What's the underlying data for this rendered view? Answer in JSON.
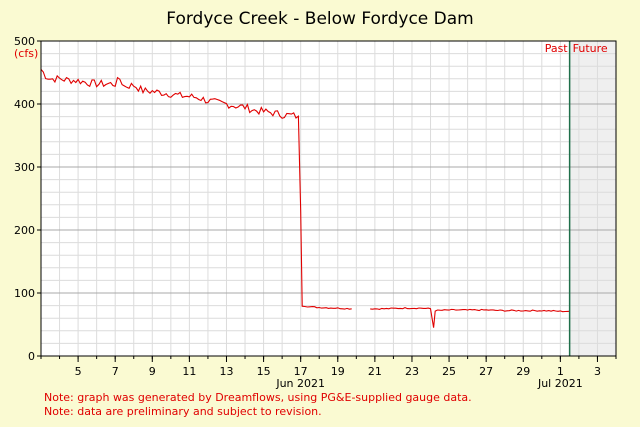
{
  "chart_data": {
    "type": "line",
    "title": "Fordyce Creek - Below Fordyce Dam",
    "ylabel": "(cfs)",
    "ylim": [
      0,
      500
    ],
    "yticks": [
      0,
      100,
      200,
      300,
      400,
      500
    ],
    "xlim": [
      "2021-06-03",
      "2021-07-04"
    ],
    "xtick_labels": [
      {
        "date": "2021-06-05",
        "label": "5"
      },
      {
        "date": "2021-06-07",
        "label": "7"
      },
      {
        "date": "2021-06-09",
        "label": "9"
      },
      {
        "date": "2021-06-11",
        "label": "11"
      },
      {
        "date": "2021-06-13",
        "label": "13"
      },
      {
        "date": "2021-06-15",
        "label": "15"
      },
      {
        "date": "2021-06-17",
        "label": "17"
      },
      {
        "date": "2021-06-19",
        "label": "19"
      },
      {
        "date": "2021-06-21",
        "label": "21"
      },
      {
        "date": "2021-06-23",
        "label": "23"
      },
      {
        "date": "2021-06-25",
        "label": "25"
      },
      {
        "date": "2021-06-27",
        "label": "27"
      },
      {
        "date": "2021-06-29",
        "label": "29"
      },
      {
        "date": "2021-07-01",
        "label": "1"
      },
      {
        "date": "2021-07-03",
        "label": "3"
      }
    ],
    "month_labels": [
      {
        "date": "2021-06-17",
        "label": "Jun 2021"
      },
      {
        "date": "2021-07-01",
        "label": "Jul 2021"
      }
    ],
    "grid": true,
    "now_date": "2021-07-01T12:00",
    "past_label": "Past",
    "future_label": "Future",
    "series": [
      {
        "color": "#e00000",
        "segments": [
          [
            [
              "2021-06-03T00:00",
              455
            ],
            [
              "2021-06-03T06:00",
              445
            ],
            [
              "2021-06-03T12:00",
              440
            ],
            [
              "2021-06-04T00:00",
              440
            ],
            [
              "2021-06-04T12:00",
              438
            ],
            [
              "2021-06-05T00:00",
              437
            ],
            [
              "2021-06-05T12:00",
              434
            ],
            [
              "2021-06-06T00:00",
              432
            ],
            [
              "2021-06-06T12:00",
              432
            ],
            [
              "2021-06-07T00:00",
              432
            ],
            [
              "2021-06-07T06:00",
              440
            ],
            [
              "2021-06-07T12:00",
              428
            ],
            [
              "2021-06-08T00:00",
              430
            ],
            [
              "2021-06-08T12:00",
              421
            ],
            [
              "2021-06-09T00:00",
              420
            ],
            [
              "2021-06-09T12:00",
              418
            ],
            [
              "2021-06-10T00:00",
              416
            ],
            [
              "2021-06-10T12:00",
              413
            ],
            [
              "2021-06-11T00:00",
              412
            ],
            [
              "2021-06-11T12:00",
              410
            ],
            [
              "2021-06-12T00:00",
              405
            ],
            [
              "2021-06-12T12:00",
              402
            ],
            [
              "2021-06-13T00:00",
              400
            ],
            [
              "2021-06-13T12:00",
              397
            ],
            [
              "2021-06-14T00:00",
              395
            ],
            [
              "2021-06-14T12:00",
              390
            ],
            [
              "2021-06-15T00:00",
              388
            ],
            [
              "2021-06-15T12:00",
              386
            ],
            [
              "2021-06-16T00:00",
              383
            ],
            [
              "2021-06-16T12:00",
              382
            ],
            [
              "2021-06-16T18:00",
              381
            ],
            [
              "2021-06-16T21:00",
              380
            ],
            [
              "2021-06-17T00:00",
              230
            ],
            [
              "2021-06-17T02:00",
              80
            ],
            [
              "2021-06-17T12:00",
              78
            ],
            [
              "2021-06-18T00:00",
              77
            ],
            [
              "2021-06-19T00:00",
              76
            ],
            [
              "2021-06-19T18:00",
              75
            ]
          ],
          [
            [
              "2021-06-20T18:00",
              75
            ],
            [
              "2021-06-21T12:00",
              75
            ],
            [
              "2021-06-22T12:00",
              76
            ],
            [
              "2021-06-23T12:00",
              76
            ],
            [
              "2021-06-24T00:00",
              75
            ],
            [
              "2021-06-24T04:00",
              45
            ],
            [
              "2021-06-24T06:00",
              72
            ],
            [
              "2021-06-25T00:00",
              73
            ],
            [
              "2021-06-26T00:00",
              73
            ],
            [
              "2021-06-27T00:00",
              73
            ],
            [
              "2021-06-28T00:00",
              72
            ],
            [
              "2021-06-29T00:00",
              72
            ],
            [
              "2021-06-30T00:00",
              72
            ],
            [
              "2021-07-01T00:00",
              71
            ],
            [
              "2021-07-01T12:00",
              71
            ]
          ]
        ]
      }
    ]
  },
  "notes": [
    "Note: graph was generated by Dreamflows, using PG&E-supplied gauge data.",
    "Note: data are preliminary and subject to revision."
  ]
}
